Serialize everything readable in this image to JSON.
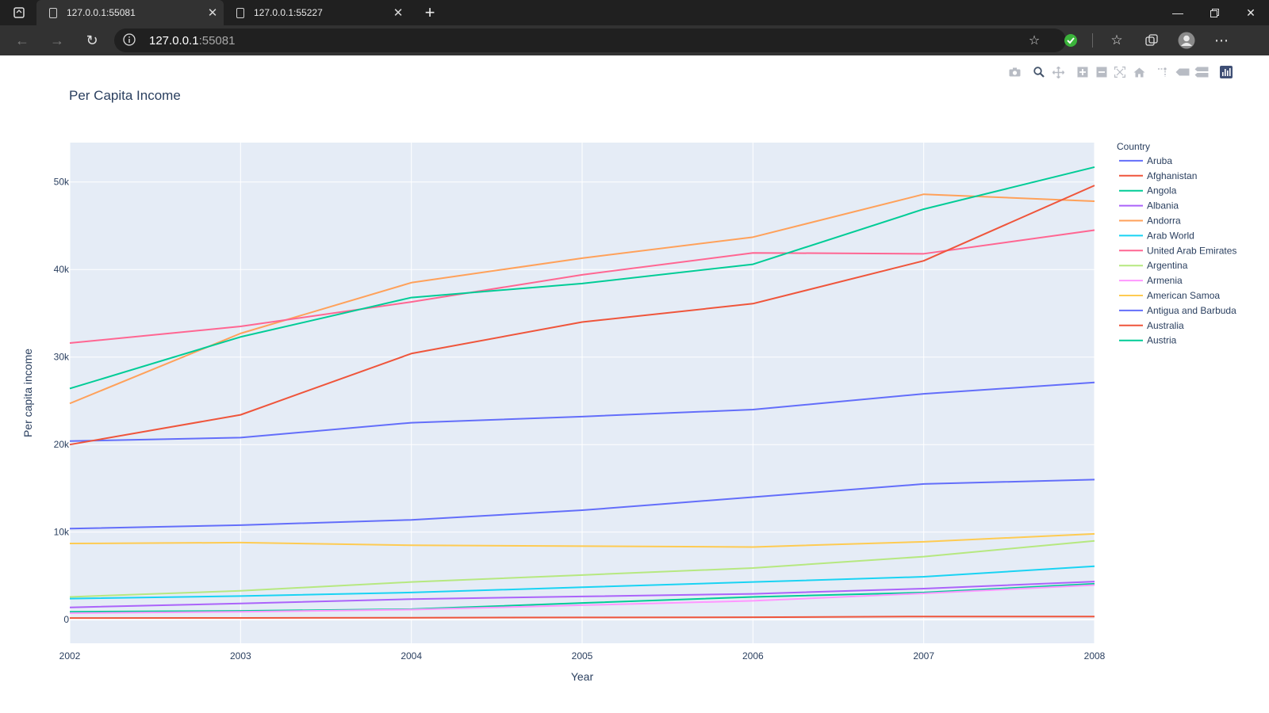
{
  "browser": {
    "tabs": [
      {
        "title": "127.0.0.1:55081"
      },
      {
        "title": "127.0.0.1:55227"
      }
    ],
    "url_host": "127.0.0.1",
    "url_port": ":55081",
    "icons": [
      "app-menu-icon",
      "page-icon",
      "close-icon",
      "new-tab-icon",
      "minimize-icon",
      "restore-icon",
      "window-close-icon",
      "back-icon",
      "forward-icon",
      "reload-icon",
      "info-icon",
      "favorite-add-icon",
      "shield-check-icon",
      "favorites-icon",
      "collections-icon",
      "profile-icon",
      "more-icon"
    ]
  },
  "modebar": {
    "icons": [
      "camera-icon",
      "zoom-icon",
      "pan-icon",
      "zoom-in-icon",
      "zoom-out-icon",
      "autoscale-icon",
      "home-icon",
      "spike-lines-icon",
      "hover-closest-icon",
      "hover-compare-icon",
      "plotly-logo-icon"
    ]
  },
  "chart_data": {
    "type": "line",
    "title": "Per Capita Income",
    "xlabel": "Year",
    "ylabel": "Per capita income",
    "legend_title": "Country",
    "legend_position": "right",
    "grid": true,
    "xlim": [
      2002,
      2008
    ],
    "ylim": [
      -2700,
      54500
    ],
    "x": [
      2002,
      2003,
      2004,
      2005,
      2006,
      2007,
      2008
    ],
    "x_ticks": [
      "2002",
      "2003",
      "2004",
      "2005",
      "2006",
      "2007",
      "2008"
    ],
    "y_ticks": [
      {
        "value": 0,
        "label": "0"
      },
      {
        "value": 10000,
        "label": "10k"
      },
      {
        "value": 20000,
        "label": "20k"
      },
      {
        "value": 30000,
        "label": "30k"
      },
      {
        "value": 40000,
        "label": "40k"
      },
      {
        "value": 50000,
        "label": "50k"
      }
    ],
    "series": [
      {
        "name": "Aruba",
        "color": "#636efa",
        "values": [
          20400,
          20800,
          22500,
          23200,
          24000,
          25800,
          27100
        ]
      },
      {
        "name": "Afghanistan",
        "color": "#EF553B",
        "values": [
          180,
          200,
          220,
          250,
          270,
          360,
          360
        ]
      },
      {
        "name": "Angola",
        "color": "#00cc96",
        "values": [
          900,
          1000,
          1200,
          1900,
          2600,
          3100,
          4100
        ]
      },
      {
        "name": "Albania",
        "color": "#ab63fa",
        "values": [
          1400,
          1850,
          2350,
          2650,
          2950,
          3550,
          4350
        ]
      },
      {
        "name": "Andorra",
        "color": "#FFA15A",
        "values": [
          24700,
          32700,
          38500,
          41300,
          43700,
          48600,
          47800
        ]
      },
      {
        "name": "Arab World",
        "color": "#19d3f3",
        "values": [
          2400,
          2700,
          3100,
          3700,
          4300,
          4900,
          6100
        ]
      },
      {
        "name": "United Arab Emirates",
        "color": "#FF6692",
        "values": [
          31600,
          33500,
          36300,
          39400,
          41900,
          41800,
          44500
        ]
      },
      {
        "name": "Argentina",
        "color": "#B6E880",
        "values": [
          2600,
          3300,
          4300,
          5100,
          5900,
          7200,
          9000
        ]
      },
      {
        "name": "Armenia",
        "color": "#FF97FF",
        "values": [
          750,
          900,
          1150,
          1650,
          2150,
          3000,
          3950
        ]
      },
      {
        "name": "American Samoa",
        "color": "#FECB52",
        "values": [
          8700,
          8800,
          8500,
          8400,
          8300,
          8900,
          9800
        ]
      },
      {
        "name": "Antigua and Barbuda",
        "color": "#636efa",
        "values": [
          10400,
          10800,
          11400,
          12500,
          14000,
          15500,
          16000
        ]
      },
      {
        "name": "Australia",
        "color": "#EF553B",
        "values": [
          20000,
          23400,
          30400,
          34000,
          36100,
          41000,
          49600
        ]
      },
      {
        "name": "Austria",
        "color": "#00cc96",
        "values": [
          26400,
          32300,
          36800,
          38400,
          40600,
          46900,
          51700
        ]
      }
    ]
  }
}
